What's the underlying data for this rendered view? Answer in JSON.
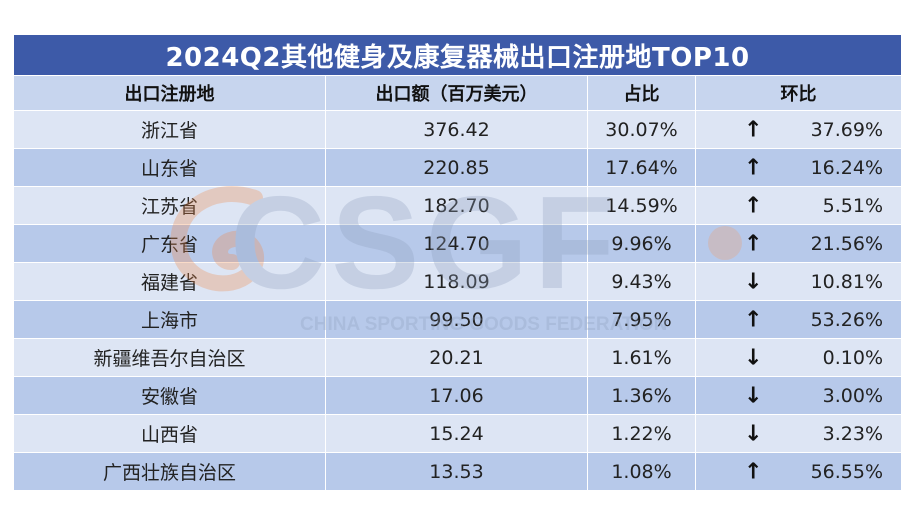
{
  "title": "2024Q2其他健身及康复器械出口注册地TOP10",
  "headers": {
    "region": "出口注册地",
    "amount": "出口额（百万美元）",
    "share": "占比",
    "mom": "环比"
  },
  "rows": [
    {
      "region": "浙江省",
      "amount": "376.42",
      "share": "30.07%",
      "arrow": "↑",
      "mom": "37.69%"
    },
    {
      "region": "山东省",
      "amount": "220.85",
      "share": "17.64%",
      "arrow": "↑",
      "mom": "16.24%"
    },
    {
      "region": "江苏省",
      "amount": "182.70",
      "share": "14.59%",
      "arrow": "↑",
      "mom": "5.51%"
    },
    {
      "region": "广东省",
      "amount": "124.70",
      "share": "9.96%",
      "arrow": "↑",
      "mom": "21.56%"
    },
    {
      "region": "福建省",
      "amount": "118.09",
      "share": "9.43%",
      "arrow": "↓",
      "mom": "10.81%"
    },
    {
      "region": "上海市",
      "amount": "99.50",
      "share": "7.95%",
      "arrow": "↑",
      "mom": "53.26%"
    },
    {
      "region": "新疆维吾尔自治区",
      "amount": "20.21",
      "share": "1.61%",
      "arrow": "↓",
      "mom": "0.10%"
    },
    {
      "region": "安徽省",
      "amount": "17.06",
      "share": "1.36%",
      "arrow": "↓",
      "mom": "3.00%"
    },
    {
      "region": "山西省",
      "amount": "15.24",
      "share": "1.22%",
      "arrow": "↓",
      "mom": "3.23%"
    },
    {
      "region": "广西壮族自治区",
      "amount": "13.53",
      "share": "1.08%",
      "arrow": "↑",
      "mom": "56.55%"
    }
  ],
  "watermark": {
    "logo": "CSGF",
    "subtitle": "CHINA SPORTING GOODS FEDERATION"
  },
  "colors": {
    "title_bg": "#3d5aa8",
    "header_bg": "#c7d5ee",
    "row_light": "#dde5f4",
    "row_dark": "#b7c9ea"
  },
  "icons": {
    "up": "arrow-up-icon",
    "down": "arrow-down-icon"
  }
}
